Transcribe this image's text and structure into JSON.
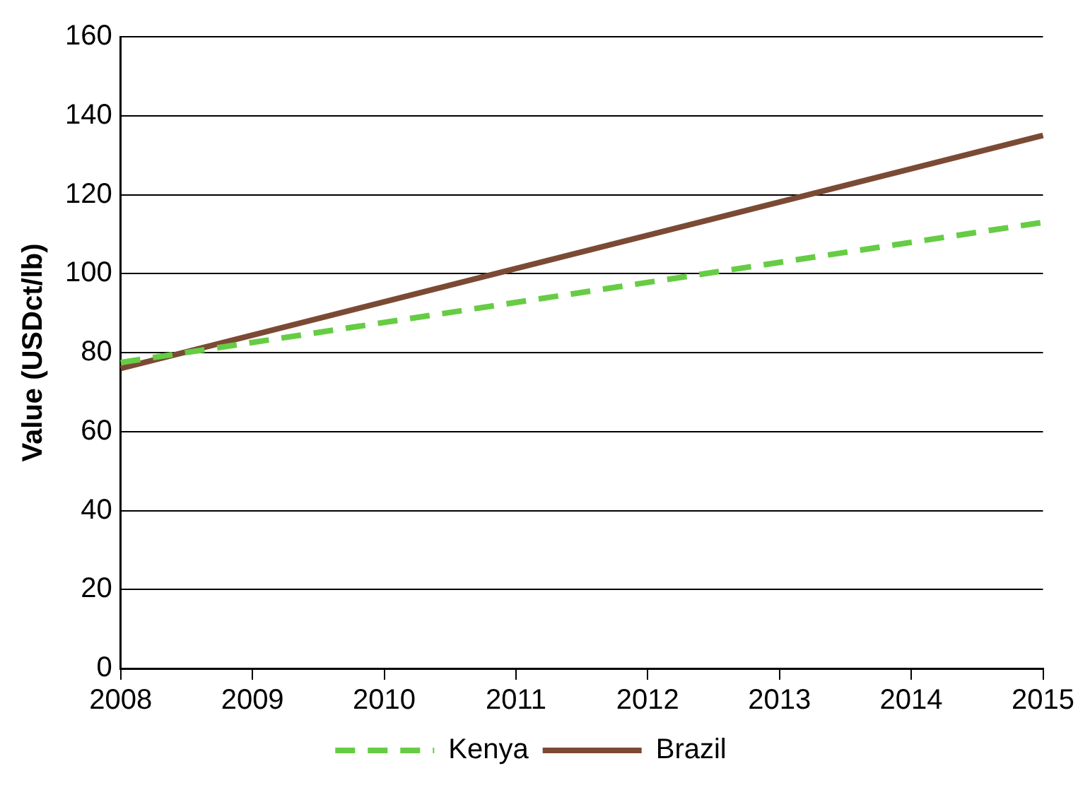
{
  "chart_data": {
    "type": "line",
    "ylabel": "Value (USDct/lb)",
    "x": [
      2008,
      2015
    ],
    "xlim": [
      2008,
      2015
    ],
    "xticks": [
      2008,
      2009,
      2010,
      2011,
      2012,
      2013,
      2014,
      2015
    ],
    "ylim": [
      0,
      160
    ],
    "yticks": [
      0,
      20,
      40,
      60,
      80,
      100,
      120,
      140,
      160
    ],
    "grid": "y",
    "legend": "bottom",
    "marker": "none",
    "series": [
      {
        "name": "Kenya",
        "color": "#66cc44",
        "line_style": "dashed",
        "values": [
          77.5,
          113
        ]
      },
      {
        "name": "Brazil",
        "color": "#7b4a35",
        "line_style": "solid",
        "values": [
          76,
          135
        ]
      }
    ]
  }
}
